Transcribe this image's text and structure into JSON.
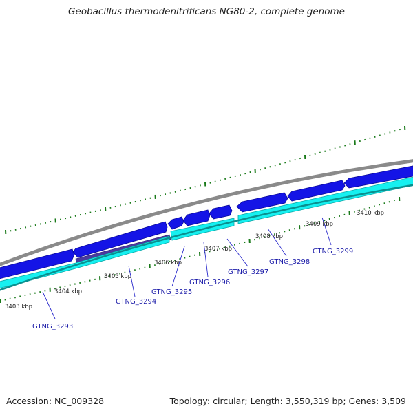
{
  "title": "Geobacillus thermodenitrificans NG80-2, complete genome",
  "footer": {
    "accession": "Accession: NC_009328",
    "summary": "Topology: circular; Length: 3,550,319 bp; Genes: 3,509"
  },
  "colors": {
    "backbone": "#8a8a8a",
    "forward_cds": "#1414e6",
    "reverse_cds": "#16f0f0",
    "rna_feature": "#4a3a9e",
    "tick": "#1a7a1a",
    "label_line": "#2a2acc"
  },
  "kbp_labels": [
    "3403 kbp",
    "3404 kbp",
    "3405 kbp",
    "3406 kbp",
    "3407 kbp",
    "3408 kbp",
    "3409 kbp",
    "3410 kbp"
  ],
  "gene_labels": [
    "GTNG_3293",
    "GTNG_3294",
    "GTNG_3295",
    "GTNG_3296",
    "GTNG_3297",
    "GTNG_3298",
    "GTNG_3299"
  ]
}
